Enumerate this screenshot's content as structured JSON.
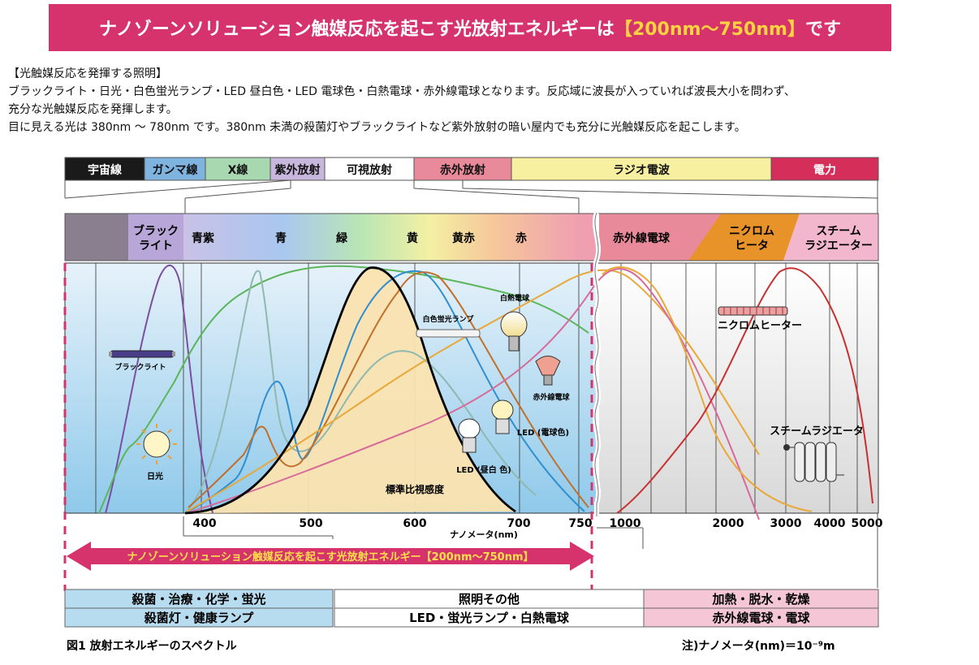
{
  "banner": {
    "text_a": "ナノゾーンソリューション触媒反応を起こす光放射エネルギーは",
    "text_b": "【200nm～750nm】",
    "text_c": "です"
  },
  "intro": {
    "line1": "【光触媒反応を発揮する照明】",
    "line2": "ブラックライト・日光・白色蛍光ランプ・LED 昼白色・LED 電球色・白熱電球・赤外線電球となります。反応域に波長が入っていれば波長大小を問わず、",
    "line3": "充分な光触媒反応を発揮します。",
    "line4": "目に見える光は 380nm 〜 780nm です。380nm 未満の殺菌灯やブラックライトなど紫外放射の暗い屋内でも充分に光触媒反応を起こします。"
  },
  "chart_data": {
    "type": "line",
    "title": "図1 放射エネルギーのスペクトル",
    "note": "注)ナノメータ(nm)＝10⁻⁹m",
    "xlabel": "ナノメータ(nm)",
    "x_ticks": [
      "400",
      "500",
      "600",
      "700",
      "750",
      "1000",
      "2000",
      "3000",
      "4000",
      "5000"
    ],
    "spectrum_bands": [
      "宇宙線",
      "ガンマ線",
      "X線",
      "紫外放射",
      "可視放射",
      "赤外放射",
      "ラジオ電波",
      "電力"
    ],
    "band_colors": [
      "#1a1a1a",
      "#7fb3e0",
      "#a8d8b0",
      "#c7b7dd",
      "#ffffff",
      "#e88a9a",
      "#f7f0a0",
      "#d62e5a"
    ],
    "visible_labels": [
      "ブラック\nライト",
      "青紫",
      "青",
      "緑",
      "黄",
      "黄赤",
      "赤"
    ],
    "ir_labels": [
      "赤外線電球",
      "ニクロム\nヒータ",
      "スチーム\nラジエーター"
    ],
    "series": [
      {
        "name": "ブラックライト",
        "color": "#7b4ea0"
      },
      {
        "name": "日光",
        "color": "#5bb55a"
      },
      {
        "name": "白色蛍光ランプ",
        "color": "#8fb8b0"
      },
      {
        "name": "LED (昼白 色)",
        "color": "#2f8fcf"
      },
      {
        "name": "LED (電球色)",
        "color": "#c0702a"
      },
      {
        "name": "白熱電球",
        "color": "#e8a83a"
      },
      {
        "name": "赤外線電球",
        "color": "#d86a9a"
      },
      {
        "name": "標準比視感度",
        "color": "#000000"
      },
      {
        "name": "ニクロムヒーター",
        "color": "#e8a83a"
      },
      {
        "name": "スチームラジエータ",
        "color": "#c83030"
      }
    ],
    "arrow_label": "ナノゾーンソリューション触媒反応を起こす光放射エネルギー【200nm～750nm】",
    "applications": [
      {
        "top": "殺菌・治療・化学・蛍光",
        "bottom": "殺菌灯・健康ランプ"
      },
      {
        "top": "照明その他",
        "bottom": "LED・蛍光ランプ・白熱電球"
      },
      {
        "top": "加熱・脱水・乾燥",
        "bottom": "赤外線電球・電球"
      }
    ]
  }
}
